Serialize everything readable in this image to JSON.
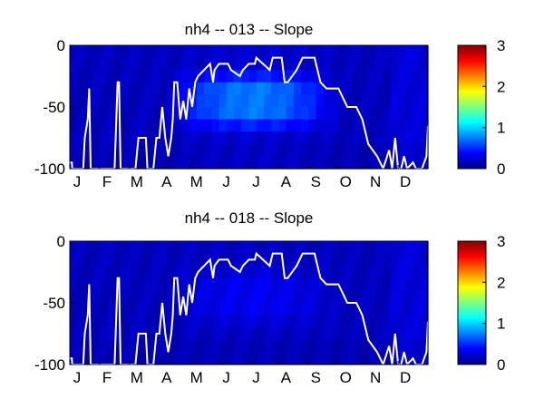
{
  "chart_data": [
    {
      "type": "heatmap",
      "title": "nh4 -- 013 -- Slope",
      "xlabel": "",
      "ylabel": "",
      "x_tick_labels": [
        "J",
        "F",
        "M",
        "A",
        "M",
        "J",
        "J",
        "A",
        "S",
        "O",
        "N",
        "D"
      ],
      "y_tick_labels": [
        "0",
        "-50",
        "-100"
      ],
      "ylim": [
        -100,
        0
      ],
      "colorbar": {
        "range": [
          0,
          3
        ],
        "tick_labels": [
          "0",
          "1",
          "2",
          "3"
        ],
        "colormap": "jet"
      },
      "grid": false,
      "depth_bands": [
        {
          "top": 0,
          "bottom": -10
        },
        {
          "top": -10,
          "bottom": -20
        },
        {
          "top": -20,
          "bottom": -30
        },
        {
          "top": -30,
          "bottom": -40
        },
        {
          "top": -40,
          "bottom": -50
        },
        {
          "top": -50,
          "bottom": -60
        },
        {
          "top": -60,
          "bottom": -70
        },
        {
          "top": -70,
          "bottom": -80
        },
        {
          "top": -80,
          "bottom": -90
        },
        {
          "top": -90,
          "bottom": -100
        }
      ],
      "approx_slope_values": {
        "month_start": [
          0.2,
          0.2,
          0.25,
          0.3,
          0.35,
          0.3,
          0.3,
          0.28,
          0.25,
          0.22,
          0.2,
          0.3
        ],
        "note_profile": "values peak near 0.9 between -30 and -60 m from April to August"
      },
      "series": [
        {
          "type": "line",
          "color": "#ffffff",
          "x_month": [
            0.0,
            0.07,
            0.08,
            0.45,
            0.5,
            0.6,
            0.65,
            0.7,
            0.75,
            0.95,
            1.05,
            1.1,
            1.15,
            1.3,
            1.5,
            1.6,
            1.65,
            1.7,
            1.8,
            2.1,
            2.15,
            2.2,
            2.3,
            2.5,
            2.55,
            2.6,
            2.7,
            2.8,
            2.9,
            3.0,
            3.1,
            3.2,
            3.3,
            3.4,
            3.45,
            3.5,
            3.6,
            3.7,
            3.8,
            3.9,
            4.0,
            4.1,
            4.2,
            4.3,
            4.5,
            4.7,
            4.8,
            4.85,
            5.0,
            5.3,
            5.4,
            5.7,
            5.8,
            6.0,
            6.2,
            6.25,
            6.7,
            6.8,
            7.1,
            7.2,
            7.3,
            7.6,
            7.8,
            8.0,
            8.2,
            8.4,
            8.6,
            9.0,
            9.3,
            9.6,
            9.8,
            10.0,
            10.3,
            10.5,
            10.7,
            10.8,
            10.9,
            11.0,
            11.1,
            11.2,
            11.3,
            11.5,
            11.6,
            11.8,
            11.95,
            12.0
          ],
          "y_depth": [
            -95,
            -95,
            -100,
            -100,
            -75,
            -60,
            -35,
            -100,
            -100,
            -100,
            -100,
            -100,
            -100,
            -100,
            -100,
            -30,
            -30,
            -100,
            -100,
            -100,
            -100,
            -100,
            -75,
            -75,
            -75,
            -100,
            -100,
            -100,
            -75,
            -75,
            -50,
            -75,
            -90,
            -75,
            -60,
            -30,
            -30,
            -60,
            -45,
            -60,
            -35,
            -50,
            -30,
            -25,
            -20,
            -15,
            -30,
            -20,
            -15,
            -15,
            -20,
            -25,
            -20,
            -15,
            -15,
            -10,
            -20,
            -10,
            -10,
            -30,
            -30,
            -20,
            -10,
            -10,
            -10,
            -30,
            -35,
            -35,
            -50,
            -50,
            -60,
            -80,
            -90,
            -100,
            -85,
            -100,
            -75,
            -100,
            -100,
            -90,
            -100,
            -95,
            -100,
            -100,
            -90,
            -65
          ],
          "name": ""
        }
      ]
    },
    {
      "type": "heatmap",
      "title": "nh4 -- 018 -- Slope",
      "xlabel": "",
      "ylabel": "",
      "x_tick_labels": [
        "J",
        "F",
        "M",
        "A",
        "M",
        "J",
        "J",
        "A",
        "S",
        "O",
        "N",
        "D"
      ],
      "y_tick_labels": [
        "0",
        "-50",
        "-100"
      ],
      "ylim": [
        -100,
        0
      ],
      "colorbar": {
        "range": [
          0,
          3
        ],
        "tick_labels": [
          "0",
          "1",
          "2",
          "3"
        ],
        "colormap": "jet"
      },
      "grid": false,
      "series": [
        {
          "type": "line",
          "color": "#ffffff",
          "x_month": [
            0.0,
            0.07,
            0.08,
            0.45,
            0.5,
            0.6,
            0.65,
            0.7,
            0.75,
            0.95,
            1.05,
            1.1,
            1.15,
            1.3,
            1.5,
            1.6,
            1.65,
            1.7,
            1.8,
            2.1,
            2.15,
            2.2,
            2.3,
            2.5,
            2.55,
            2.6,
            2.7,
            2.8,
            2.9,
            3.0,
            3.1,
            3.2,
            3.3,
            3.4,
            3.45,
            3.5,
            3.6,
            3.7,
            3.8,
            3.9,
            4.0,
            4.1,
            4.2,
            4.3,
            4.5,
            4.7,
            4.8,
            4.85,
            5.0,
            5.3,
            5.4,
            5.7,
            5.8,
            6.0,
            6.2,
            6.25,
            6.7,
            6.8,
            7.1,
            7.2,
            7.3,
            7.6,
            7.8,
            8.0,
            8.2,
            8.4,
            8.6,
            9.0,
            9.3,
            9.6,
            9.8,
            10.0,
            10.3,
            10.5,
            10.7,
            10.8,
            10.9,
            11.0,
            11.1,
            11.2,
            11.3,
            11.5,
            11.6,
            11.8,
            11.95,
            12.0
          ],
          "y_depth": [
            -95,
            -95,
            -100,
            -100,
            -75,
            -60,
            -35,
            -100,
            -100,
            -100,
            -100,
            -100,
            -100,
            -100,
            -100,
            -30,
            -30,
            -100,
            -100,
            -100,
            -100,
            -100,
            -75,
            -75,
            -75,
            -100,
            -100,
            -100,
            -75,
            -75,
            -50,
            -75,
            -90,
            -75,
            -60,
            -30,
            -30,
            -60,
            -45,
            -60,
            -35,
            -50,
            -30,
            -25,
            -20,
            -15,
            -30,
            -20,
            -15,
            -15,
            -20,
            -25,
            -20,
            -15,
            -15,
            -10,
            -20,
            -10,
            -10,
            -30,
            -30,
            -20,
            -10,
            -10,
            -10,
            -30,
            -35,
            -35,
            -50,
            -50,
            -60,
            -80,
            -90,
            -100,
            -85,
            -100,
            -75,
            -100,
            -100,
            -90,
            -100,
            -95,
            -100,
            -100,
            -90,
            -65
          ],
          "name": ""
        }
      ]
    }
  ]
}
